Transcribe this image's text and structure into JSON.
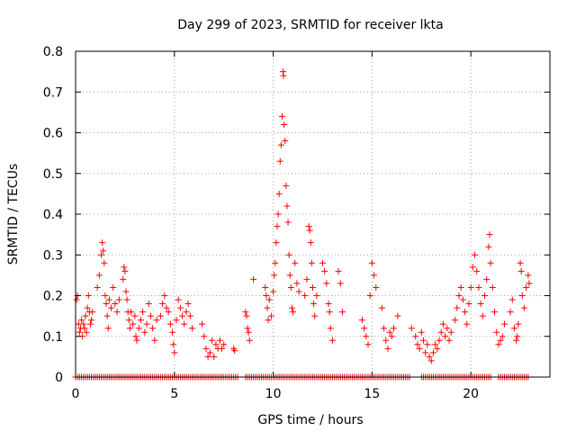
{
  "chart_data": {
    "type": "scatter",
    "title": "Day 299 of 2023, SRMTID for receiver lkta",
    "xlabel": "GPS time / hours",
    "ylabel": "SRMTID / TECUs",
    "xlim": [
      0,
      24
    ],
    "ylim": [
      0,
      0.8
    ],
    "xticks": [
      0,
      5,
      10,
      15,
      20
    ],
    "xtick_labels": [
      "0",
      "5",
      "10",
      "15",
      "20"
    ],
    "yticks": [
      0,
      0.1,
      0.2,
      0.3,
      0.4,
      0.5,
      0.6,
      0.7,
      0.8
    ],
    "ytick_labels": [
      "0",
      "0.1",
      "0.2",
      "0.3",
      "0.4",
      "0.5",
      "0.6",
      "0.7",
      "0.8"
    ],
    "grid": true,
    "marker": "+",
    "color": "#ff0000",
    "series": [
      {
        "name": "SRMTID",
        "points": [
          [
            0.05,
            0.19
          ],
          [
            0.1,
            0.2
          ],
          [
            0.15,
            0.13
          ],
          [
            0.2,
            0.11
          ],
          [
            0.25,
            0.12
          ],
          [
            0.3,
            0.14
          ],
          [
            0.35,
            0.1
          ],
          [
            0.4,
            0.13
          ],
          [
            0.45,
            0.12
          ],
          [
            0.5,
            0.15
          ],
          [
            0.55,
            0.11
          ],
          [
            0.6,
            0.17
          ],
          [
            0.65,
            0.2
          ],
          [
            0.7,
            0.16
          ],
          [
            0.75,
            0.13
          ],
          [
            0.8,
            0.14
          ],
          [
            0.85,
            0.16
          ],
          [
            1.1,
            0.22
          ],
          [
            1.2,
            0.25
          ],
          [
            1.3,
            0.3
          ],
          [
            1.35,
            0.33
          ],
          [
            1.4,
            0.31
          ],
          [
            1.45,
            0.28
          ],
          [
            1.5,
            0.2
          ],
          [
            1.55,
            0.18
          ],
          [
            1.6,
            0.15
          ],
          [
            1.65,
            0.12
          ],
          [
            1.7,
            0.19
          ],
          [
            1.8,
            0.17
          ],
          [
            1.9,
            0.22
          ],
          [
            2.0,
            0.18
          ],
          [
            2.1,
            0.16
          ],
          [
            2.2,
            0.19
          ],
          [
            2.4,
            0.24
          ],
          [
            2.45,
            0.27
          ],
          [
            2.5,
            0.26
          ],
          [
            2.55,
            0.21
          ],
          [
            2.6,
            0.19
          ],
          [
            2.65,
            0.16
          ],
          [
            2.7,
            0.14
          ],
          [
            2.75,
            0.12
          ],
          [
            2.8,
            0.16
          ],
          [
            2.9,
            0.13
          ],
          [
            3.0,
            0.15
          ],
          [
            3.05,
            0.1
          ],
          [
            3.1,
            0.09
          ],
          [
            3.2,
            0.12
          ],
          [
            3.3,
            0.14
          ],
          [
            3.4,
            0.16
          ],
          [
            3.5,
            0.11
          ],
          [
            3.6,
            0.13
          ],
          [
            3.7,
            0.18
          ],
          [
            3.8,
            0.15
          ],
          [
            3.9,
            0.12
          ],
          [
            4.0,
            0.09
          ],
          [
            4.1,
            0.14
          ],
          [
            4.3,
            0.15
          ],
          [
            4.4,
            0.18
          ],
          [
            4.5,
            0.2
          ],
          [
            4.6,
            0.17
          ],
          [
            4.7,
            0.16
          ],
          [
            4.8,
            0.13
          ],
          [
            4.9,
            0.11
          ],
          [
            4.95,
            0.08
          ],
          [
            5.0,
            0.06
          ],
          [
            5.1,
            0.14
          ],
          [
            5.2,
            0.19
          ],
          [
            5.3,
            0.17
          ],
          [
            5.4,
            0.15
          ],
          [
            5.5,
            0.13
          ],
          [
            5.6,
            0.16
          ],
          [
            5.7,
            0.18
          ],
          [
            5.8,
            0.15
          ],
          [
            5.9,
            0.12
          ],
          [
            6.4,
            0.13
          ],
          [
            6.5,
            0.1
          ],
          [
            6.6,
            0.07
          ],
          [
            6.7,
            0.05
          ],
          [
            6.8,
            0.06
          ],
          [
            6.9,
            0.09
          ],
          [
            7.0,
            0.05
          ],
          [
            7.1,
            0.08
          ],
          [
            7.2,
            0.07
          ],
          [
            7.3,
            0.09
          ],
          [
            7.4,
            0.07
          ],
          [
            7.5,
            0.08
          ],
          [
            8.0,
            0.07
          ],
          [
            8.05,
            0.065
          ],
          [
            8.6,
            0.16
          ],
          [
            8.65,
            0.15
          ],
          [
            8.7,
            0.12
          ],
          [
            8.75,
            0.11
          ],
          [
            8.8,
            0.09
          ],
          [
            9.0,
            0.24
          ],
          [
            9.6,
            0.22
          ],
          [
            9.65,
            0.2
          ],
          [
            9.7,
            0.17
          ],
          [
            9.75,
            0.14
          ],
          [
            9.8,
            0.19
          ],
          [
            9.9,
            0.15
          ],
          [
            10.0,
            0.21
          ],
          [
            10.05,
            0.25
          ],
          [
            10.1,
            0.28
          ],
          [
            10.15,
            0.33
          ],
          [
            10.2,
            0.37
          ],
          [
            10.25,
            0.4
          ],
          [
            10.3,
            0.45
          ],
          [
            10.35,
            0.53
          ],
          [
            10.4,
            0.57
          ],
          [
            10.45,
            0.64
          ],
          [
            10.5,
            0.75
          ],
          [
            10.52,
            0.74
          ],
          [
            10.55,
            0.62
          ],
          [
            10.6,
            0.58
          ],
          [
            10.65,
            0.47
          ],
          [
            10.7,
            0.42
          ],
          [
            10.75,
            0.38
          ],
          [
            10.8,
            0.3
          ],
          [
            10.85,
            0.25
          ],
          [
            10.9,
            0.22
          ],
          [
            10.95,
            0.17
          ],
          [
            11.0,
            0.16
          ],
          [
            11.1,
            0.28
          ],
          [
            11.2,
            0.23
          ],
          [
            11.3,
            0.21
          ],
          [
            11.6,
            0.2
          ],
          [
            11.7,
            0.24
          ],
          [
            11.8,
            0.37
          ],
          [
            11.85,
            0.36
          ],
          [
            11.9,
            0.33
          ],
          [
            11.95,
            0.28
          ],
          [
            12.0,
            0.22
          ],
          [
            12.05,
            0.18
          ],
          [
            12.1,
            0.15
          ],
          [
            12.2,
            0.2
          ],
          [
            12.5,
            0.28
          ],
          [
            12.6,
            0.26
          ],
          [
            12.7,
            0.23
          ],
          [
            12.8,
            0.18
          ],
          [
            12.85,
            0.16
          ],
          [
            12.9,
            0.12
          ],
          [
            13.0,
            0.09
          ],
          [
            13.3,
            0.26
          ],
          [
            13.4,
            0.23
          ],
          [
            13.5,
            0.16
          ],
          [
            14.5,
            0.14
          ],
          [
            14.6,
            0.12
          ],
          [
            14.7,
            0.1
          ],
          [
            14.8,
            0.08
          ],
          [
            14.9,
            0.2
          ],
          [
            15.0,
            0.28
          ],
          [
            15.1,
            0.25
          ],
          [
            15.2,
            0.22
          ],
          [
            15.5,
            0.17
          ],
          [
            15.6,
            0.12
          ],
          [
            15.7,
            0.09
          ],
          [
            15.8,
            0.07
          ],
          [
            15.9,
            0.11
          ],
          [
            16.0,
            0.1
          ],
          [
            16.1,
            0.12
          ],
          [
            16.3,
            0.15
          ],
          [
            17.0,
            0.12
          ],
          [
            17.2,
            0.1
          ],
          [
            17.3,
            0.08
          ],
          [
            17.4,
            0.07
          ],
          [
            17.5,
            0.11
          ],
          [
            17.6,
            0.09
          ],
          [
            17.7,
            0.06
          ],
          [
            17.8,
            0.08
          ],
          [
            17.9,
            0.05
          ],
          [
            18.0,
            0.04
          ],
          [
            18.1,
            0.06
          ],
          [
            18.2,
            0.08
          ],
          [
            18.3,
            0.07
          ],
          [
            18.4,
            0.09
          ],
          [
            18.5,
            0.11
          ],
          [
            18.6,
            0.13
          ],
          [
            18.7,
            0.1
          ],
          [
            18.8,
            0.12
          ],
          [
            18.9,
            0.09
          ],
          [
            19.0,
            0.11
          ],
          [
            19.2,
            0.14
          ],
          [
            19.3,
            0.17
          ],
          [
            19.4,
            0.2
          ],
          [
            19.5,
            0.22
          ],
          [
            19.6,
            0.19
          ],
          [
            19.7,
            0.16
          ],
          [
            19.8,
            0.13
          ],
          [
            19.9,
            0.18
          ],
          [
            20.0,
            0.22
          ],
          [
            20.1,
            0.27
          ],
          [
            20.2,
            0.3
          ],
          [
            20.3,
            0.26
          ],
          [
            20.4,
            0.22
          ],
          [
            20.5,
            0.18
          ],
          [
            20.6,
            0.15
          ],
          [
            20.7,
            0.2
          ],
          [
            20.8,
            0.24
          ],
          [
            20.9,
            0.32
          ],
          [
            20.95,
            0.35
          ],
          [
            21.0,
            0.28
          ],
          [
            21.1,
            0.22
          ],
          [
            21.2,
            0.16
          ],
          [
            21.3,
            0.11
          ],
          [
            21.4,
            0.08
          ],
          [
            21.5,
            0.09
          ],
          [
            21.6,
            0.1
          ],
          [
            21.7,
            0.13
          ],
          [
            22.0,
            0.16
          ],
          [
            22.1,
            0.19
          ],
          [
            22.2,
            0.12
          ],
          [
            22.3,
            0.09
          ],
          [
            22.35,
            0.1
          ],
          [
            22.4,
            0.13
          ],
          [
            22.5,
            0.28
          ],
          [
            22.55,
            0.26
          ],
          [
            22.6,
            0.2
          ],
          [
            22.7,
            0.17
          ],
          [
            22.8,
            0.22
          ],
          [
            22.9,
            0.25
          ],
          [
            22.95,
            0.23
          ]
        ]
      },
      {
        "name": "zero-values",
        "x_start": 0.0,
        "x_end": 22.9,
        "x_step": 0.1,
        "y": 0,
        "gaps": [
          [
            8.2,
            8.5
          ],
          [
            16.9,
            17.4
          ],
          [
            21.1,
            21.4
          ]
        ]
      }
    ]
  }
}
